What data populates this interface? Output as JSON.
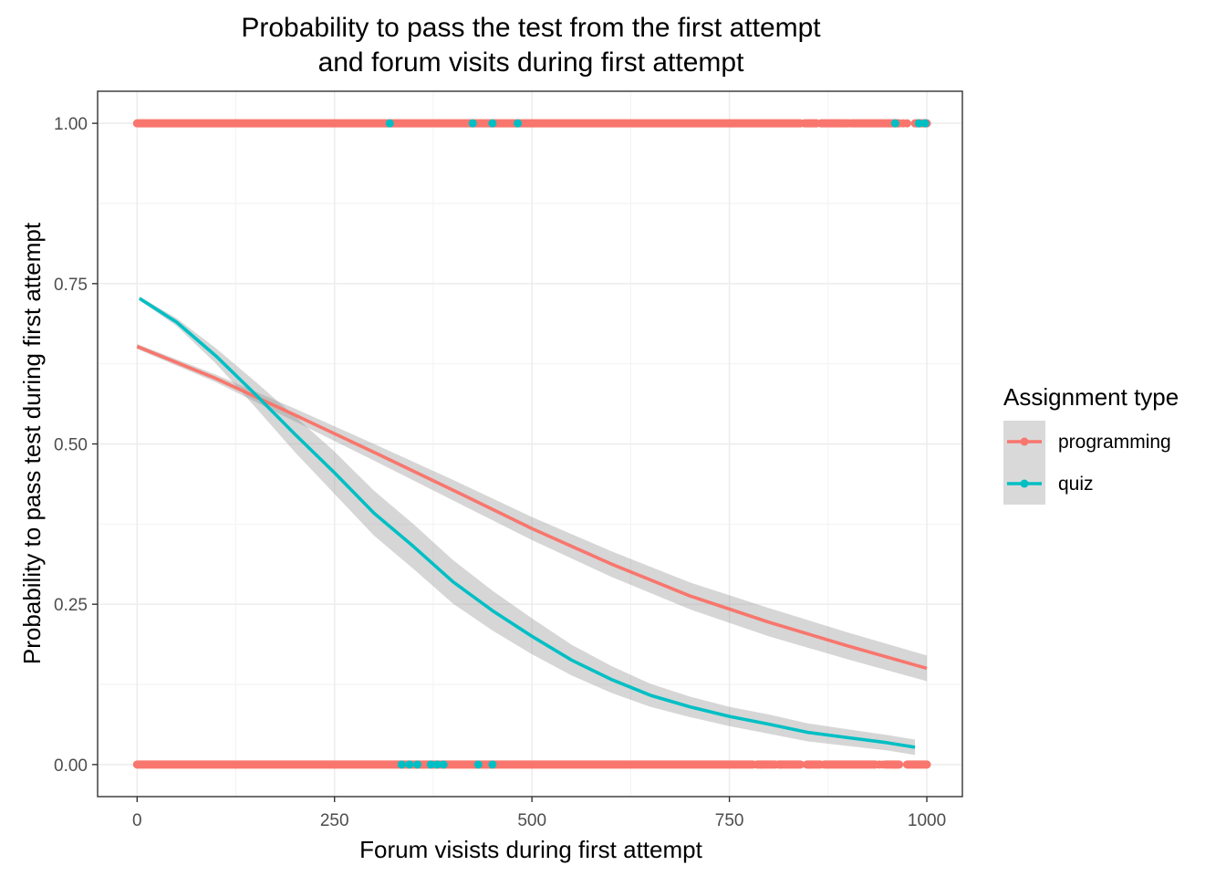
{
  "chart_data": {
    "type": "scatter",
    "title": "Probability to pass the test from the first attempt",
    "subtitle": "and forum visits during first attempt",
    "xlabel": "Forum visists during first attempt",
    "ylabel": "Probability to pass test during first attempt",
    "xlim": [
      -50,
      1045
    ],
    "ylim": [
      -0.05,
      1.05
    ],
    "xticks": [
      "0",
      "250",
      "500",
      "750",
      "1000"
    ],
    "xtick_values": [
      0,
      250,
      500,
      750,
      1000
    ],
    "yticks": [
      "0.00",
      "0.25",
      "0.50",
      "0.75",
      "1.00"
    ],
    "ytick_values": [
      0,
      0.25,
      0.5,
      0.75,
      1.0
    ],
    "grid": true,
    "legend": {
      "title": "Assignment type",
      "placement": "right"
    },
    "series": [
      {
        "name": "programming",
        "color": "#F8766D",
        "fit": {
          "x": [
            0,
            100,
            200,
            300,
            400,
            500,
            600,
            700,
            800,
            900,
            1000
          ],
          "y": [
            0.652,
            0.602,
            0.545,
            0.487,
            0.428,
            0.368,
            0.313,
            0.263,
            0.222,
            0.185,
            0.15
          ],
          "ci_half_width": [
            0.004,
            0.006,
            0.01,
            0.013,
            0.016,
            0.018,
            0.02,
            0.021,
            0.022,
            0.021,
            0.02
          ]
        },
        "points_y1": {
          "spans": [
            [
              0,
              840
            ],
            [
              845,
              860
            ],
            [
              866,
              900
            ],
            [
              905,
              965
            ],
            [
              985,
              1000
            ]
          ],
          "x": [
            855,
            860,
            880,
            902,
            970,
            975
          ]
        },
        "points_y0": {
          "spans": [
            [
              0,
              780
            ],
            [
              785,
              808
            ],
            [
              812,
              840
            ],
            [
              848,
              865
            ],
            [
              870,
              935
            ],
            [
              948,
              965
            ],
            [
              975,
              1000
            ]
          ],
          "x": [
            790,
            815,
            852,
            940,
            945,
            960
          ]
        }
      },
      {
        "name": "quiz",
        "color": "#00BFC4",
        "fit": {
          "x": [
            3,
            50,
            100,
            150,
            200,
            250,
            300,
            350,
            400,
            450,
            500,
            550,
            600,
            650,
            700,
            750,
            800,
            850,
            900,
            950,
            985
          ],
          "y": [
            0.727,
            0.69,
            0.637,
            0.577,
            0.515,
            0.455,
            0.392,
            0.34,
            0.285,
            0.24,
            0.2,
            0.163,
            0.133,
            0.108,
            0.09,
            0.075,
            0.063,
            0.05,
            0.042,
            0.034,
            0.027
          ],
          "ci_half_width": [
            0.003,
            0.006,
            0.012,
            0.02,
            0.028,
            0.033,
            0.035,
            0.035,
            0.034,
            0.031,
            0.028,
            0.024,
            0.021,
            0.018,
            0.016,
            0.015,
            0.015,
            0.014,
            0.013,
            0.012,
            0.012
          ]
        },
        "points_y1": {
          "spans": [],
          "x": [
            320,
            425,
            450,
            482,
            960,
            990,
            998
          ]
        },
        "points_y0": {
          "spans": [],
          "x": [
            335,
            345,
            355,
            372,
            380,
            388,
            432,
            450
          ]
        }
      }
    ]
  }
}
